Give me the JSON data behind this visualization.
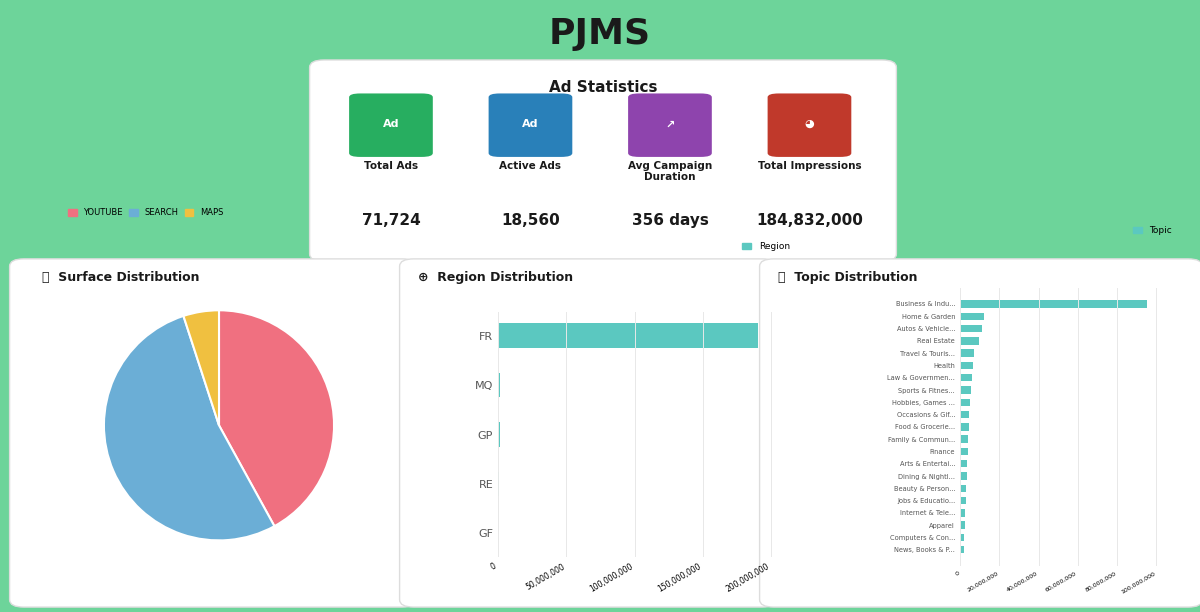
{
  "title": "PJMS",
  "background_color": "#6dd49a",
  "ad_stats_title": "Ad Statistics",
  "stats": [
    {
      "label": "Total Ads",
      "value": "71,724",
      "icon_color": "#27ae60",
      "icon_bg": "#27ae60"
    },
    {
      "label": "Active Ads",
      "value": "18,560",
      "icon_color": "#2980b9",
      "icon_bg": "#2980b9"
    },
    {
      "label": "Avg Campaign\nDuration",
      "value": "356 days",
      "icon_color": "#8e44ad",
      "icon_bg": "#8e44ad"
    },
    {
      "label": "Total Impressions",
      "value": "184,832,000",
      "icon_color": "#c0392b",
      "icon_bg": "#c0392b"
    }
  ],
  "surface_title": "Surface Distribution",
  "surface_labels": [
    "YOUTUBE",
    "SEARCH",
    "MAPS"
  ],
  "surface_colors": [
    "#f07080",
    "#6baed6",
    "#f0c040"
  ],
  "surface_sizes": [
    42,
    53,
    5
  ],
  "region_title": "Region Distribution",
  "region_labels": [
    "GF",
    "RE",
    "GP",
    "MQ",
    "FR"
  ],
  "region_values": [
    200000,
    900000,
    1500000,
    1200000,
    190000000
  ],
  "region_color": "#5bc8c0",
  "topic_title": "Topic Distribution",
  "topic_labels": [
    "News, Books & P...",
    "Computers & Con...",
    "Apparel",
    "Internet & Tele...",
    "Jobs & Educatio...",
    "Beauty & Person...",
    "Dining & Nightl...",
    "Arts & Entertai...",
    "Finance",
    "Family & Commun...",
    "Food & Grocerie...",
    "Occasions & Gif...",
    "Hobbies, Games ...",
    "Sports & Fitnes...",
    "Law & Governmen...",
    "Health",
    "Travel & Touris...",
    "Real Estate",
    "Autos & Vehicle...",
    "Home & Garden",
    "Business & Indu..."
  ],
  "topic_values": [
    1800000,
    2200000,
    2500000,
    2800000,
    3000000,
    3200000,
    3500000,
    3800000,
    4000000,
    4200000,
    4500000,
    4800000,
    5000000,
    5500000,
    6000000,
    6500000,
    7000000,
    9500000,
    11000000,
    12000000,
    95000000
  ],
  "topic_color": "#5bc8c0",
  "panel_bg": "#ffffff",
  "text_color": "#1a1a1a",
  "grid_color": "#e8e8e8"
}
